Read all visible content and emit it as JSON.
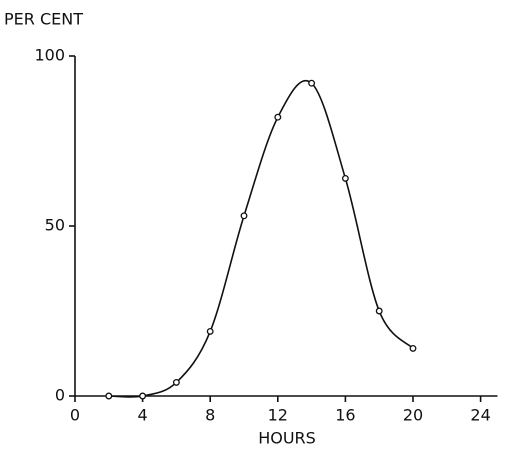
{
  "chart_data": {
    "type": "line",
    "y_label": "PER CENT",
    "x_label": "HOURS",
    "x": [
      2,
      4,
      6,
      8,
      10,
      12,
      14,
      16,
      18,
      20
    ],
    "values": [
      0,
      0,
      4,
      19,
      53,
      82,
      92,
      64,
      25,
      14
    ],
    "color": "#111111",
    "xlim": [
      0,
      25
    ],
    "xticks": [
      0,
      4,
      8,
      12,
      16,
      20,
      24
    ],
    "ylim": [
      0,
      100
    ],
    "yticks": [
      0,
      50,
      100
    ],
    "grid": false
  }
}
